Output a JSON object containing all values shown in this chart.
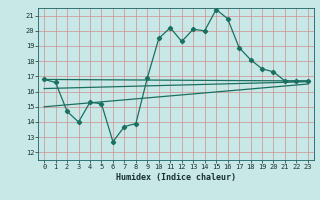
{
  "title": "",
  "xlabel": "Humidex (Indice chaleur)",
  "background_color": "#c8e8e8",
  "grid_color": "#d09090",
  "line_color": "#1a7060",
  "xlim": [
    -0.5,
    23.5
  ],
  "ylim": [
    11.5,
    21.5
  ],
  "yticks": [
    12,
    13,
    14,
    15,
    16,
    17,
    18,
    19,
    20,
    21
  ],
  "xticks": [
    0,
    1,
    2,
    3,
    4,
    5,
    6,
    7,
    8,
    9,
    10,
    11,
    12,
    13,
    14,
    15,
    16,
    17,
    18,
    19,
    20,
    21,
    22,
    23
  ],
  "main_line_x": [
    0,
    1,
    2,
    3,
    4,
    5,
    6,
    7,
    8,
    9,
    10,
    11,
    12,
    13,
    14,
    15,
    16,
    17,
    18,
    19,
    20,
    21,
    22,
    23
  ],
  "main_line_y": [
    16.8,
    16.6,
    14.7,
    14.0,
    15.3,
    15.2,
    12.7,
    13.7,
    13.9,
    16.9,
    19.5,
    20.2,
    19.3,
    20.1,
    20.0,
    21.4,
    20.8,
    18.9,
    18.1,
    17.5,
    17.3,
    16.7,
    16.7,
    16.7
  ],
  "line2_x": [
    0,
    23
  ],
  "line2_y": [
    16.8,
    16.7
  ],
  "line3_x": [
    0,
    23
  ],
  "line3_y": [
    16.2,
    16.65
  ],
  "line4_x": [
    0,
    23
  ],
  "line4_y": [
    15.0,
    16.5
  ],
  "tick_fontsize": 5,
  "xlabel_fontsize": 6
}
